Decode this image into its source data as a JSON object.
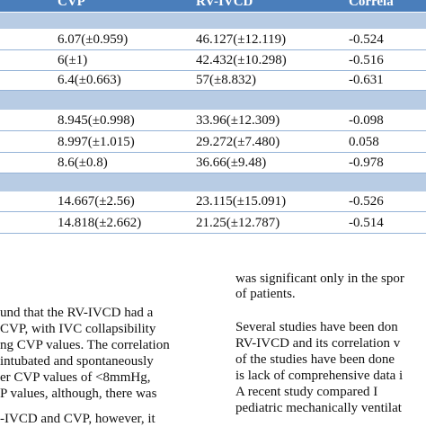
{
  "table": {
    "header": [
      "CVP",
      "RV-IVCD",
      "Correla"
    ],
    "rows": [
      [
        "6.07(±0.959)",
        "46.127(±12.119)",
        "-0.524"
      ],
      [
        "6(±1)",
        "42.432(±10.298)",
        "-0.516"
      ],
      [
        "6.4(±0.663)",
        "57(±8.832)",
        "-0.631"
      ],
      [
        "8.945(±0.998)",
        "33.96(±12.309)",
        "-0.098"
      ],
      [
        "8.997(±1.015)",
        "29.272(±7.480)",
        "0.058"
      ],
      [
        "8.6(±0.8)",
        "36.66(±9.48)",
        "-0.978"
      ],
      [
        "14.667(±2.56)",
        "23.115(±15.091)",
        "-0.526"
      ],
      [
        "14.818(±2.662)",
        "21.25(±12.787)",
        "-0.514"
      ]
    ]
  },
  "body": {
    "left_column": [
      "und that the RV-IVCD had a",
      "CVP, with IVC collapsibility",
      "ng CVP values. The correlation",
      "intubated and spontaneously",
      "er CVP values of <8mmHg,",
      "P values, although, there was",
      "-IVCD and CVP, however, it"
    ],
    "right_column": [
      "was significant only in the spor",
      "of patients.",
      "Several studies have been don",
      "RV-IVCD and its correlation v",
      "of the studies have been done",
      "is lack of comprehensive data i",
      "A recent study compared I",
      "pediatric mechanically ventilat"
    ]
  }
}
